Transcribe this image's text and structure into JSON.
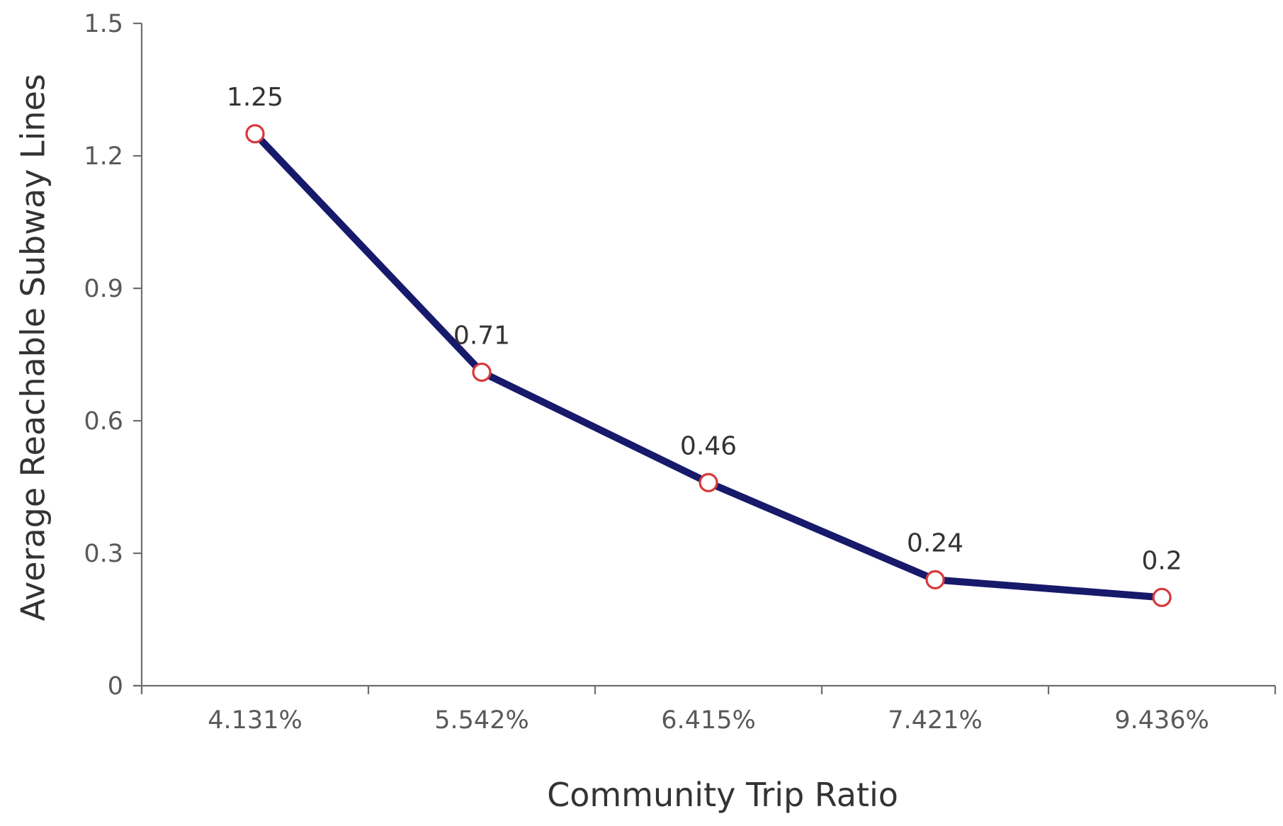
{
  "chart_data": {
    "type": "line",
    "categories": [
      "4.131%",
      "5.542%",
      "6.415%",
      "7.421%",
      "9.436%"
    ],
    "series": [
      {
        "values": [
          1.25,
          0.71,
          0.46,
          0.24,
          0.2
        ],
        "data_labels": [
          "1.25",
          "0.71",
          "0.46",
          "0.24",
          "0.2"
        ]
      }
    ],
    "xlabel": "Community Trip Ratio",
    "ylabel": "Average Reachable Subway Lines",
    "ylim": [
      0,
      1.5
    ],
    "yticks": [
      0,
      0.3,
      0.6,
      0.9,
      1.2,
      1.5
    ],
    "ytick_labels": [
      "0",
      "0.3",
      "0.6",
      "0.9",
      "1.2",
      "1.5"
    ],
    "grid": false,
    "legend": "none"
  },
  "colors": {
    "line": "#17196b",
    "marker_stroke": "#d9383a",
    "marker_fill": "#ffffff"
  }
}
